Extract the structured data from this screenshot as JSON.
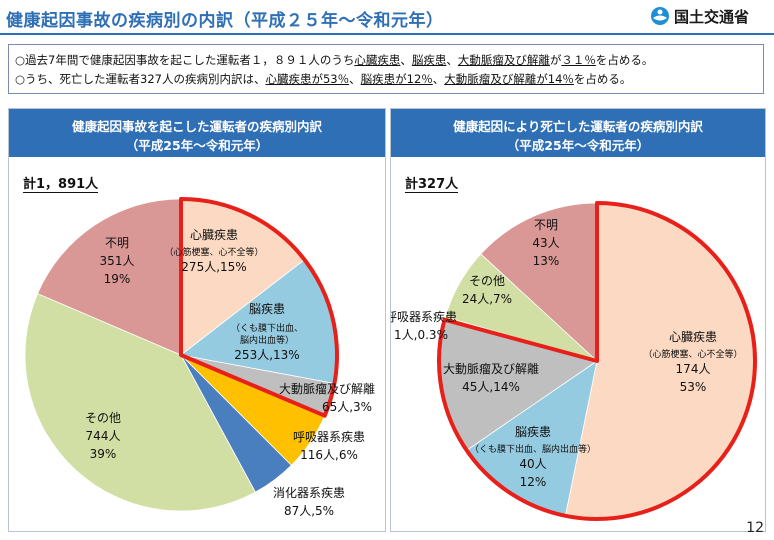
{
  "header": {
    "title": "健康起因事故の疾病別の内訳（平成２５年～令和元年）",
    "org": "国土交通省"
  },
  "summary": {
    "line1_pre": "○過去7年間で健康起因事故を起こした運転者１，８９１人のうち",
    "line1_u1": "心臓疾患",
    "line1_sep1": "、",
    "line1_u2": "脳疾患",
    "line1_sep2": "、",
    "line1_u3": "大動脈瘤及び解離",
    "line1_mid": "が",
    "line1_u4": "３１％",
    "line1_post": "を占める。",
    "line2_pre": "○うち、死亡した運転者327人の疾病別内訳は、",
    "line2_u1": "心臓疾患が53％",
    "line2_sep1": "、",
    "line2_u2": "脳疾患が12％",
    "line2_sep2": "、",
    "line2_u3": "大動脈瘤及び解離が14％",
    "line2_post": "を占める。"
  },
  "page_number": "12",
  "chart_data": [
    {
      "type": "pie",
      "title": "健康起因事故を起こした運転者の疾病別内訳",
      "subtitle": "（平成25年～令和元年）",
      "total_label": "計1，891人",
      "start": "12 o'clock, clockwise",
      "highlight": "heart, brain, aorta slices outlined in red",
      "slices": [
        {
          "name": "心臓疾患",
          "detail": "（心筋梗塞、心不全等）",
          "value": 275,
          "value_label": "275人,15%",
          "pct_label": "",
          "color": "#fcd9c2",
          "highlight": true
        },
        {
          "name": "脳疾患",
          "detail": "（くも膜下出血、",
          "detail2": "脳内出血等）",
          "value": 253,
          "value_label": "253人,13%",
          "pct_label": "",
          "color": "#95cbe0",
          "highlight": true
        },
        {
          "name": "大動脈瘤及び解離",
          "detail": "",
          "value": 65,
          "value_label": "65人,3%",
          "pct_label": "",
          "color": "#bfbfbf",
          "highlight": true
        },
        {
          "name": "呼吸器系疾患",
          "detail": "",
          "value": 116,
          "value_label": "116人,6%",
          "pct_label": "",
          "color": "#ffc000",
          "highlight": false
        },
        {
          "name": "消化器系疾患",
          "detail": "",
          "value": 87,
          "value_label": "87人,5%",
          "pct_label": "",
          "color": "#4a7fbf",
          "highlight": false
        },
        {
          "name": "その他",
          "detail": "",
          "value": 744,
          "value_label": "744人",
          "pct_label": "39%",
          "color": "#d2dfa4",
          "highlight": false
        },
        {
          "name": "不明",
          "detail": "",
          "value": 351,
          "value_label": "351人",
          "pct_label": "19%",
          "color": "#d99796",
          "highlight": false
        }
      ]
    },
    {
      "type": "pie",
      "title": "健康起因により死亡した運転者の疾病別内訳",
      "subtitle": "（平成25年～令和元年）",
      "total_label": "計327人",
      "start": "12 o'clock, clockwise",
      "highlight": "heart, brain, aorta slices outlined in red",
      "slices": [
        {
          "name": "心臓疾患",
          "detail": "（心筋梗塞、心不全等）",
          "value": 174,
          "value_label": "174人",
          "pct_label": "53%",
          "color": "#fcd9c2",
          "highlight": true
        },
        {
          "name": "脳疾患",
          "detail": "（くも膜下出血、脳内出血等）",
          "value": 40,
          "value_label": "40人",
          "pct_label": "12%",
          "color": "#95cbe0",
          "highlight": true
        },
        {
          "name": "大動脈瘤及び解離",
          "detail": "",
          "value": 45,
          "value_label": "45人,14%",
          "pct_label": "",
          "color": "#bfbfbf",
          "highlight": true
        },
        {
          "name": "呼吸器系疾患",
          "detail": "",
          "value": 1,
          "value_label": "1人,0.3%",
          "pct_label": "",
          "color": "#ffc000",
          "highlight": false
        },
        {
          "name": "その他",
          "detail": "",
          "value": 24,
          "value_label": "24人,7%",
          "pct_label": "",
          "color": "#d2dfa4",
          "highlight": false
        },
        {
          "name": "不明",
          "detail": "",
          "value": 43,
          "value_label": "43人",
          "pct_label": "13%",
          "color": "#d99796",
          "highlight": false
        }
      ]
    }
  ],
  "colors": {
    "accent": "#2f6fb5",
    "highlight": "#e8201a"
  }
}
